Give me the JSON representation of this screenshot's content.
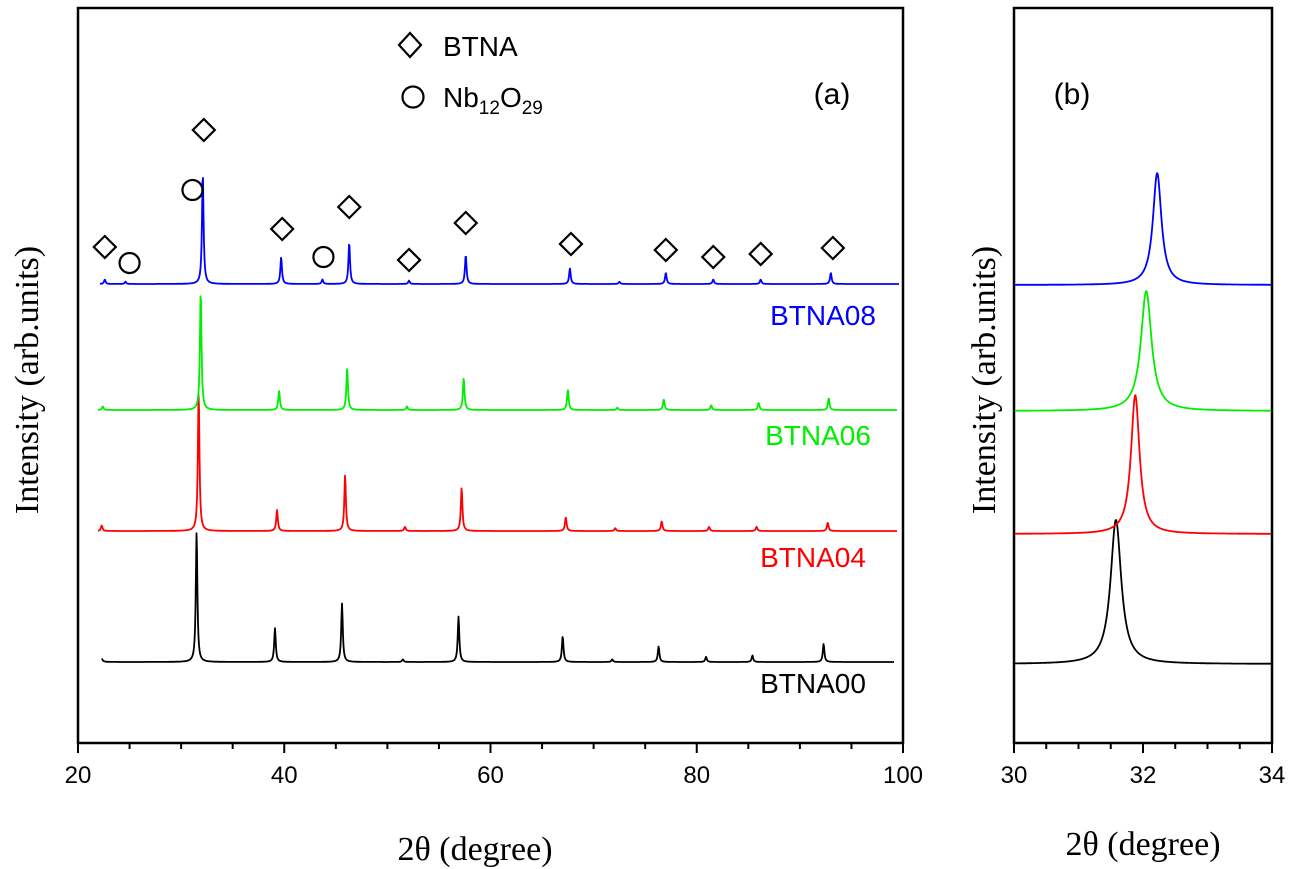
{
  "chart_data": [
    {
      "panel": "(a)",
      "type": "line",
      "xlabel": "2θ (degree)",
      "ylabel": "Intensity (arb.units)",
      "xlim": [
        20,
        100
      ],
      "xticks": [
        20,
        40,
        60,
        80,
        100
      ],
      "legend": {
        "placement": "top-center",
        "entries": [
          {
            "marker": "diamond",
            "label": "BTNA"
          },
          {
            "marker": "circle",
            "label": "Nb",
            "sub1": "12",
            "mid": "O",
            "sub2": "29"
          }
        ]
      },
      "series": [
        {
          "name": "BTNA00",
          "color": "#000000",
          "offset": 0,
          "peaks": [
            [
              22.2,
              0.08
            ],
            [
              31.5,
              1.0
            ],
            [
              39.1,
              0.26
            ],
            [
              45.6,
              0.45
            ],
            [
              51.5,
              0.02
            ],
            [
              56.9,
              0.35
            ],
            [
              67.0,
              0.2
            ],
            [
              71.8,
              0.02
            ],
            [
              76.3,
              0.12
            ],
            [
              80.9,
              0.04
            ],
            [
              85.4,
              0.05
            ],
            [
              92.3,
              0.14
            ]
          ]
        },
        {
          "name": "BTNA04",
          "color": "#ff0000",
          "offset": 1,
          "peaks": [
            [
              22.3,
              0.04
            ],
            [
              31.7,
              1.0
            ],
            [
              39.3,
              0.15
            ],
            [
              45.9,
              0.4
            ],
            [
              51.7,
              0.03
            ],
            [
              57.2,
              0.31
            ],
            [
              67.3,
              0.1
            ],
            [
              72.1,
              0.02
            ],
            [
              76.6,
              0.07
            ],
            [
              81.2,
              0.03
            ],
            [
              85.8,
              0.03
            ],
            [
              92.7,
              0.06
            ]
          ]
        },
        {
          "name": "BTNA06",
          "color": "#00ee00",
          "offset": 2,
          "peaks": [
            [
              22.4,
              0.03
            ],
            [
              31.9,
              1.0
            ],
            [
              39.5,
              0.16
            ],
            [
              46.1,
              0.35
            ],
            [
              51.9,
              0.03
            ],
            [
              57.4,
              0.27
            ],
            [
              67.5,
              0.17
            ],
            [
              72.3,
              0.02
            ],
            [
              76.8,
              0.09
            ],
            [
              81.4,
              0.04
            ],
            [
              86.0,
              0.06
            ],
            [
              92.8,
              0.1
            ]
          ]
        },
        {
          "name": "BTNA08",
          "color": "#0000ff",
          "offset": 3,
          "peaks": [
            [
              22.6,
              0.04
            ],
            [
              24.6,
              0.02
            ],
            [
              32.1,
              1.0
            ],
            [
              39.7,
              0.24
            ],
            [
              43.7,
              0.04
            ],
            [
              46.3,
              0.37
            ],
            [
              52.1,
              0.03
            ],
            [
              57.6,
              0.26
            ],
            [
              67.7,
              0.14
            ],
            [
              72.5,
              0.02
            ],
            [
              77.0,
              0.1
            ],
            [
              81.6,
              0.04
            ],
            [
              86.2,
              0.04
            ],
            [
              93.0,
              0.1
            ]
          ]
        }
      ],
      "markers": [
        {
          "type": "diamond",
          "x": 22.6,
          "above": "BTNA08"
        },
        {
          "type": "circle",
          "x": 25.0,
          "above": "BTNA08"
        },
        {
          "type": "circle",
          "x": 31.1,
          "above": "BTNA08"
        },
        {
          "type": "diamond",
          "x": 32.2,
          "above": "BTNA08"
        },
        {
          "type": "diamond",
          "x": 39.8,
          "above": "BTNA08"
        },
        {
          "type": "circle",
          "x": 43.8,
          "above": "BTNA08"
        },
        {
          "type": "diamond",
          "x": 46.3,
          "above": "BTNA08"
        },
        {
          "type": "diamond",
          "x": 52.1,
          "above": "BTNA08"
        },
        {
          "type": "diamond",
          "x": 57.6,
          "above": "BTNA08"
        },
        {
          "type": "diamond",
          "x": 67.8,
          "above": "BTNA08"
        },
        {
          "type": "diamond",
          "x": 77.0,
          "above": "BTNA08"
        },
        {
          "type": "diamond",
          "x": 81.6,
          "above": "BTNA08"
        },
        {
          "type": "diamond",
          "x": 86.2,
          "above": "BTNA08"
        },
        {
          "type": "diamond",
          "x": 93.2,
          "above": "BTNA08"
        }
      ]
    },
    {
      "panel": "(b)",
      "type": "line",
      "xlabel": "2θ (degree)",
      "ylabel": "Intensity (arb.units)",
      "xlim": [
        30,
        34
      ],
      "xticks": [
        30,
        32,
        34
      ],
      "series": [
        {
          "name": "BTNA00",
          "color": "#000000",
          "offset": 0,
          "peak_x": 31.58,
          "width": 0.1
        },
        {
          "name": "BTNA04",
          "color": "#ff0000",
          "offset": 1,
          "peak_x": 31.88,
          "width": 0.08
        },
        {
          "name": "BTNA06",
          "color": "#00ee00",
          "offset": 2,
          "peak_x": 32.05,
          "width": 0.1
        },
        {
          "name": "BTNA08",
          "color": "#0000ff",
          "offset": 3,
          "peak_x": 32.22,
          "width": 0.08
        }
      ]
    }
  ]
}
